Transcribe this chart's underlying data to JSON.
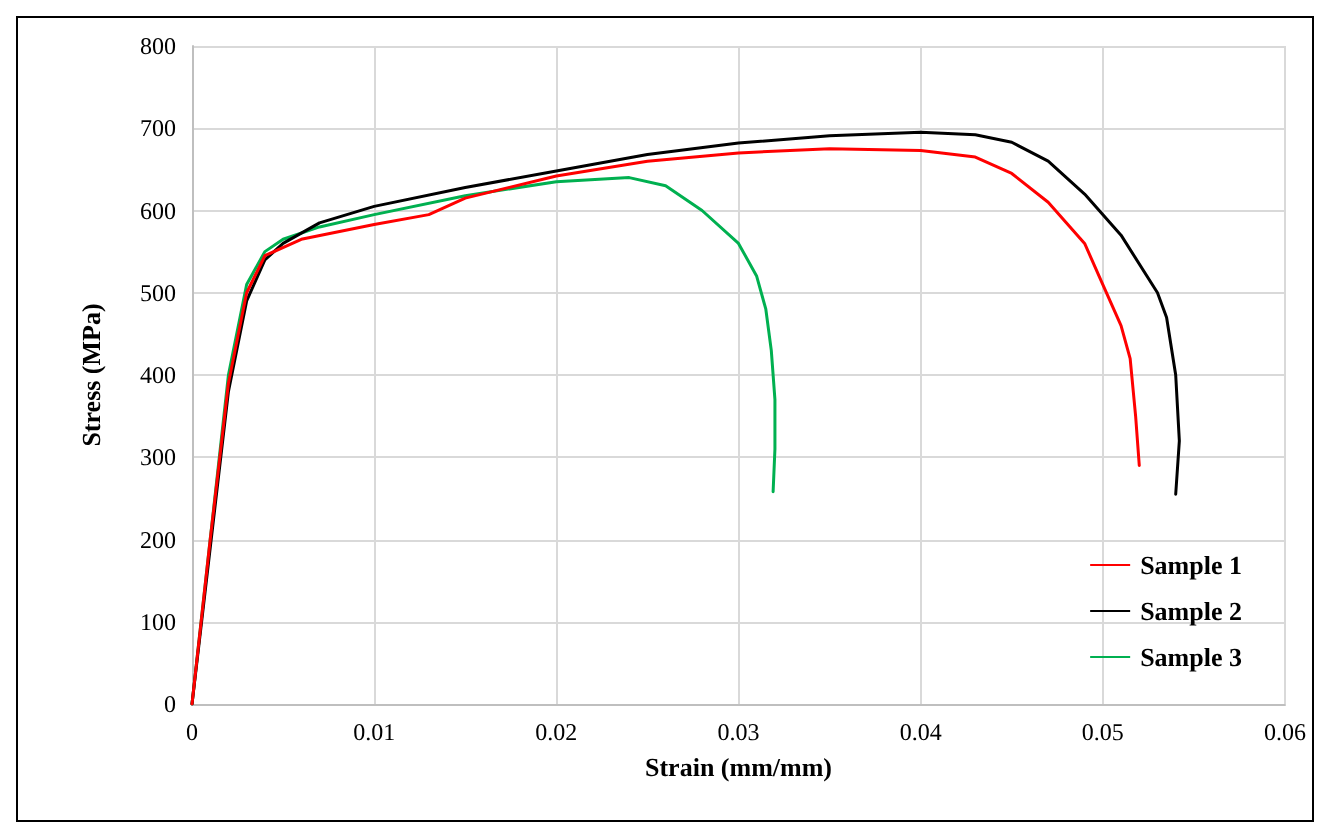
{
  "chart_data": {
    "type": "line",
    "xlabel": "Strain (mm/mm)",
    "ylabel": "Stress (MPa)",
    "xlim": [
      0,
      0.06
    ],
    "xticks": [
      0,
      0.01,
      0.02,
      0.03,
      0.04,
      0.05,
      0.06
    ],
    "ylim": [
      0,
      800
    ],
    "yticks": [
      0,
      100,
      200,
      300,
      400,
      500,
      600,
      700,
      800
    ],
    "grid": true,
    "legend": "bottom right",
    "marker": "none",
    "line_style": "solid",
    "series": [
      {
        "name": "Sample 1",
        "color": "#ff0000",
        "x": [
          0,
          0.001,
          0.002,
          0.003,
          0.004,
          0.006,
          0.01,
          0.013,
          0.015,
          0.02,
          0.025,
          0.03,
          0.035,
          0.04,
          0.043,
          0.045,
          0.047,
          0.049,
          0.05,
          0.051,
          0.0515,
          0.0518,
          0.052
        ],
        "values": [
          0,
          200,
          390,
          500,
          545,
          565,
          583,
          595,
          615,
          642,
          660,
          670,
          675,
          673,
          665,
          645,
          610,
          560,
          510,
          460,
          420,
          350,
          290
        ]
      },
      {
        "name": "Sample 2",
        "color": "#000000",
        "x": [
          0,
          0.001,
          0.002,
          0.003,
          0.004,
          0.005,
          0.007,
          0.01,
          0.015,
          0.02,
          0.025,
          0.03,
          0.035,
          0.04,
          0.043,
          0.045,
          0.047,
          0.049,
          0.051,
          0.053,
          0.0535,
          0.054,
          0.0542,
          0.054
        ],
        "values": [
          0,
          190,
          380,
          490,
          540,
          560,
          585,
          605,
          628,
          648,
          668,
          682,
          691,
          695,
          692,
          683,
          660,
          620,
          570,
          500,
          470,
          400,
          320,
          255
        ]
      },
      {
        "name": "Sample 3",
        "color": "#00b050",
        "x": [
          0,
          0.001,
          0.002,
          0.003,
          0.004,
          0.005,
          0.007,
          0.01,
          0.015,
          0.02,
          0.024,
          0.026,
          0.028,
          0.03,
          0.031,
          0.0315,
          0.0318,
          0.032,
          0.032,
          0.0319
        ],
        "values": [
          0,
          200,
          400,
          510,
          550,
          565,
          580,
          595,
          618,
          635,
          640,
          630,
          600,
          560,
          520,
          480,
          430,
          370,
          310,
          258
        ]
      }
    ]
  }
}
